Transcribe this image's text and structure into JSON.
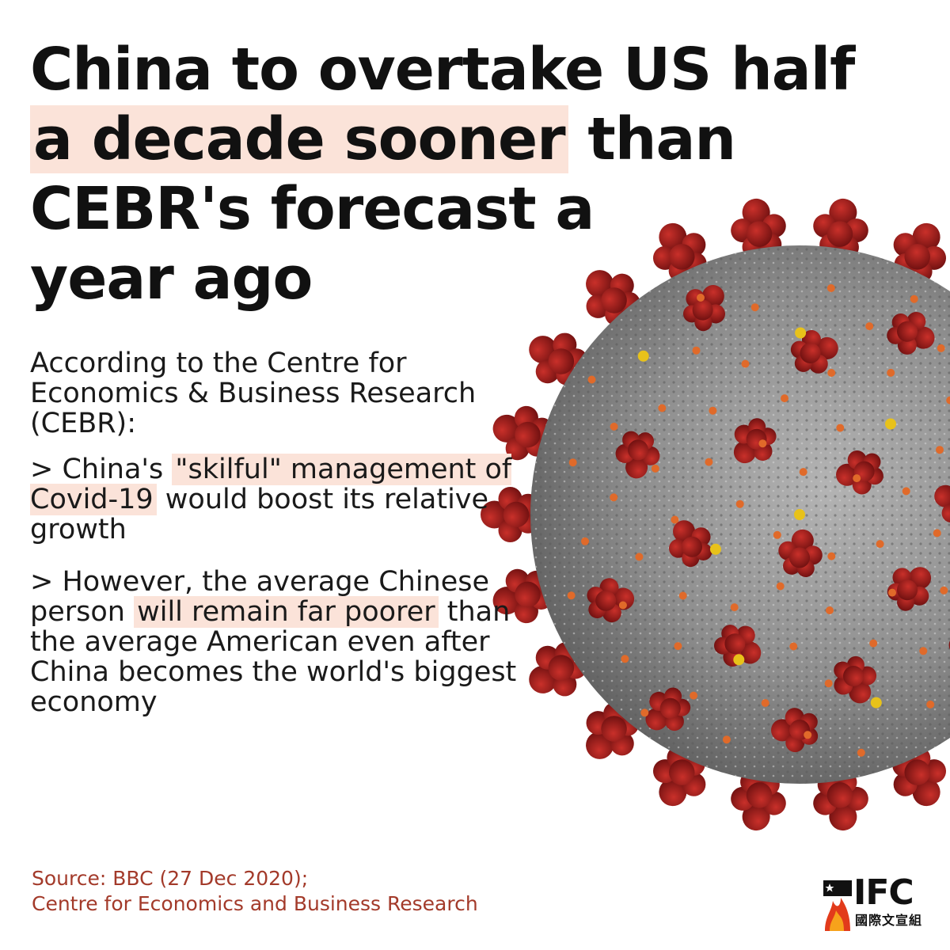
{
  "headline": {
    "line1": "China to overtake US half",
    "line2_highlight": "a decade sooner",
    "line2_rest": " than",
    "line3": "CEBR's forecast a",
    "line4": "year ago"
  },
  "intro": "According to the Centre for Economics & Business Research (CEBR):",
  "bullet1": {
    "prefix": "> China's ",
    "highlight": "\"skilful\" management of Covid-19",
    "suffix": " would boost its relative growth"
  },
  "bullet2": {
    "prefix": "> However, the average Chinese person ",
    "highlight": "will remain far poorer",
    "suffix": " than the average American even after China becomes the world's biggest economy"
  },
  "source": {
    "line1": "Source: BBC (27 Dec 2020);",
    "line2": "Centre for Economics and Business Research"
  },
  "logo": {
    "text": "IFC",
    "subtitle": "國際文宣組"
  },
  "colors": {
    "highlight": "#fbe3d9",
    "source_text": "#a33a2a",
    "spike_red": "#9e1c1c",
    "virus_grey": "#8a8a8a",
    "orange_dot": "#e06a2a",
    "yellow_dot": "#e8c21a"
  },
  "image": {
    "subject": "coronavirus-illustration"
  }
}
